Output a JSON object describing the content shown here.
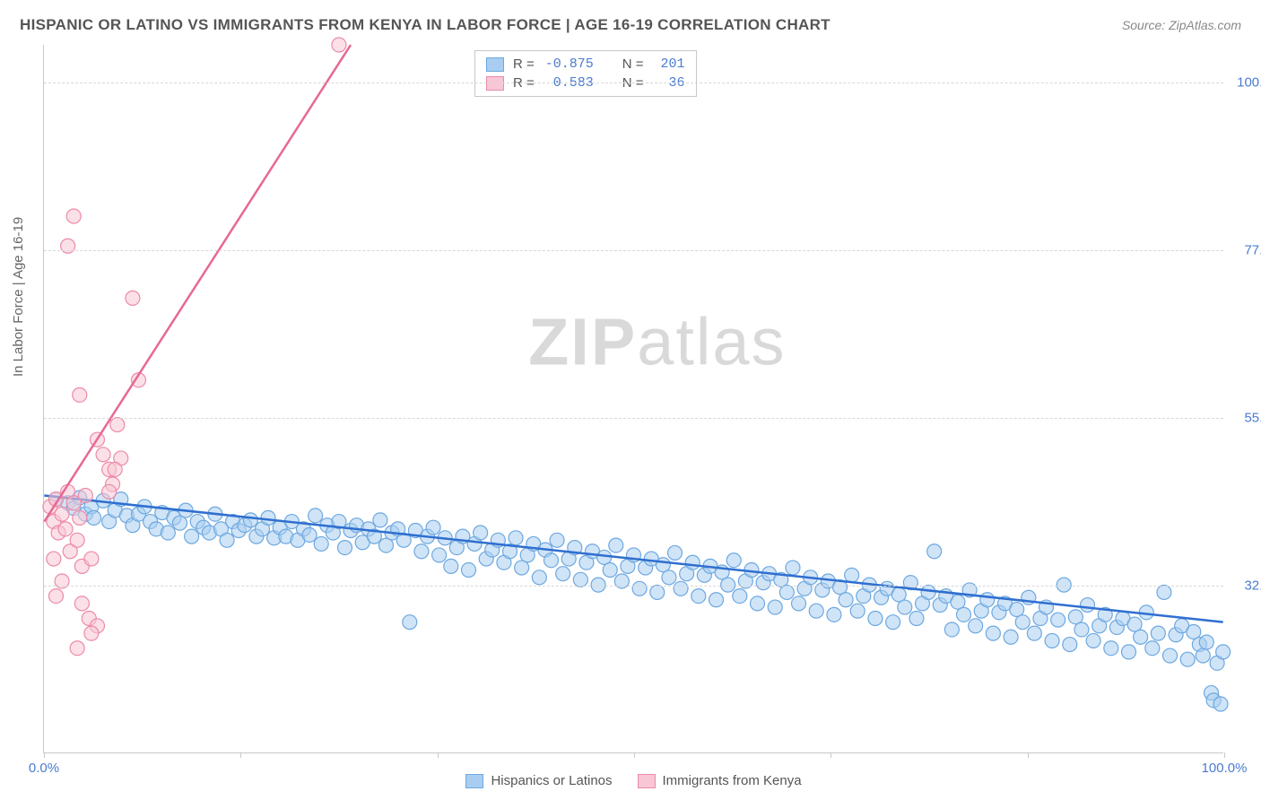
{
  "title": "HISPANIC OR LATINO VS IMMIGRANTS FROM KENYA IN LABOR FORCE | AGE 16-19 CORRELATION CHART",
  "source": "Source: ZipAtlas.com",
  "ylabel": "In Labor Force | Age 16-19",
  "watermark": {
    "bold": "ZIP",
    "light": "atlas"
  },
  "chart": {
    "type": "scatter",
    "bg_color": "#ffffff",
    "grid_color": "#d8d8d8",
    "axis_color": "#c8c8c8",
    "tick_color": "#4a7bd0",
    "marker_radius": 8,
    "marker_opacity": 0.55,
    "line_width": 2.5,
    "xlim": [
      0,
      100
    ],
    "ylim": [
      10,
      105
    ],
    "x_ticks": [
      0,
      16.67,
      33.33,
      50,
      66.67,
      83.33,
      100
    ],
    "x_tick_labels": [
      "0.0%",
      "",
      "",
      "",
      "",
      "",
      "100.0%"
    ],
    "y_grid": [
      32.5,
      55.0,
      77.5,
      100.0
    ],
    "y_tick_labels": [
      "32.5%",
      "55.0%",
      "77.5%",
      "100.0%"
    ],
    "series": [
      {
        "name": "Hispanics or Latinos",
        "color_fill": "#a9cdf0",
        "color_stroke": "#6da8e0",
        "line_color": "#2f6fd0",
        "R": "-0.875",
        "N": "201",
        "trend": {
          "x1": 0,
          "y1": 44.5,
          "x2": 100,
          "y2": 27.5
        },
        "points": [
          [
            1,
            44
          ],
          [
            2,
            43.5
          ],
          [
            2.5,
            42.8
          ],
          [
            3,
            44.2
          ],
          [
            3.5,
            42
          ],
          [
            4,
            43
          ],
          [
            4.2,
            41.5
          ],
          [
            5,
            43.8
          ],
          [
            5.5,
            41
          ],
          [
            6,
            42.5
          ],
          [
            6.5,
            44
          ],
          [
            7,
            41.8
          ],
          [
            7.5,
            40.5
          ],
          [
            8,
            42
          ],
          [
            8.5,
            43
          ],
          [
            9,
            41
          ],
          [
            9.5,
            40
          ],
          [
            10,
            42.2
          ],
          [
            10.5,
            39.5
          ],
          [
            11,
            41.5
          ],
          [
            11.5,
            40.8
          ],
          [
            12,
            42.5
          ],
          [
            12.5,
            39
          ],
          [
            13,
            41
          ],
          [
            13.5,
            40.2
          ],
          [
            14,
            39.5
          ],
          [
            14.5,
            42
          ],
          [
            15,
            40
          ],
          [
            15.5,
            38.5
          ],
          [
            16,
            41
          ],
          [
            16.5,
            39.8
          ],
          [
            17,
            40.5
          ],
          [
            17.5,
            41.2
          ],
          [
            18,
            39
          ],
          [
            18.5,
            40
          ],
          [
            19,
            41.5
          ],
          [
            19.5,
            38.8
          ],
          [
            20,
            40.2
          ],
          [
            20.5,
            39
          ],
          [
            21,
            41
          ],
          [
            21.5,
            38.5
          ],
          [
            22,
            40
          ],
          [
            22.5,
            39.2
          ],
          [
            23,
            41.8
          ],
          [
            23.5,
            38
          ],
          [
            24,
            40.5
          ],
          [
            24.5,
            39.5
          ],
          [
            25,
            41
          ],
          [
            25.5,
            37.5
          ],
          [
            26,
            39.8
          ],
          [
            26.5,
            40.5
          ],
          [
            27,
            38.2
          ],
          [
            27.5,
            40
          ],
          [
            28,
            39
          ],
          [
            28.5,
            41.2
          ],
          [
            29,
            37.8
          ],
          [
            29.5,
            39.5
          ],
          [
            30,
            40
          ],
          [
            30.5,
            38.5
          ],
          [
            31,
            27.5
          ],
          [
            31.5,
            39.8
          ],
          [
            32,
            37
          ],
          [
            32.5,
            39
          ],
          [
            33,
            40.2
          ],
          [
            33.5,
            36.5
          ],
          [
            34,
            38.8
          ],
          [
            34.5,
            35
          ],
          [
            35,
            37.5
          ],
          [
            35.5,
            39
          ],
          [
            36,
            34.5
          ],
          [
            36.5,
            38
          ],
          [
            37,
            39.5
          ],
          [
            37.5,
            36
          ],
          [
            38,
            37.2
          ],
          [
            38.5,
            38.5
          ],
          [
            39,
            35.5
          ],
          [
            39.5,
            37
          ],
          [
            40,
            38.8
          ],
          [
            40.5,
            34.8
          ],
          [
            41,
            36.5
          ],
          [
            41.5,
            38
          ],
          [
            42,
            33.5
          ],
          [
            42.5,
            37.2
          ],
          [
            43,
            35.8
          ],
          [
            43.5,
            38.5
          ],
          [
            44,
            34
          ],
          [
            44.5,
            36
          ],
          [
            45,
            37.5
          ],
          [
            45.5,
            33.2
          ],
          [
            46,
            35.5
          ],
          [
            46.5,
            37
          ],
          [
            47,
            32.5
          ],
          [
            47.5,
            36.2
          ],
          [
            48,
            34.5
          ],
          [
            48.5,
            37.8
          ],
          [
            49,
            33
          ],
          [
            49.5,
            35
          ],
          [
            50,
            36.5
          ],
          [
            50.5,
            32
          ],
          [
            51,
            34.8
          ],
          [
            51.5,
            36
          ],
          [
            52,
            31.5
          ],
          [
            52.5,
            35.2
          ],
          [
            53,
            33.5
          ],
          [
            53.5,
            36.8
          ],
          [
            54,
            32
          ],
          [
            54.5,
            34
          ],
          [
            55,
            35.5
          ],
          [
            55.5,
            31
          ],
          [
            56,
            33.8
          ],
          [
            56.5,
            35
          ],
          [
            57,
            30.5
          ],
          [
            57.5,
            34.2
          ],
          [
            58,
            32.5
          ],
          [
            58.5,
            35.8
          ],
          [
            59,
            31
          ],
          [
            59.5,
            33
          ],
          [
            60,
            34.5
          ],
          [
            60.5,
            30
          ],
          [
            61,
            32.8
          ],
          [
            61.5,
            34
          ],
          [
            62,
            29.5
          ],
          [
            62.5,
            33.2
          ],
          [
            63,
            31.5
          ],
          [
            63.5,
            34.8
          ],
          [
            64,
            30
          ],
          [
            64.5,
            32
          ],
          [
            65,
            33.5
          ],
          [
            65.5,
            29
          ],
          [
            66,
            31.8
          ],
          [
            66.5,
            33
          ],
          [
            67,
            28.5
          ],
          [
            67.5,
            32.2
          ],
          [
            68,
            30.5
          ],
          [
            68.5,
            33.8
          ],
          [
            69,
            29
          ],
          [
            69.5,
            31
          ],
          [
            70,
            32.5
          ],
          [
            70.5,
            28
          ],
          [
            71,
            30.8
          ],
          [
            71.5,
            32
          ],
          [
            72,
            27.5
          ],
          [
            72.5,
            31.2
          ],
          [
            73,
            29.5
          ],
          [
            73.5,
            32.8
          ],
          [
            74,
            28
          ],
          [
            74.5,
            30
          ],
          [
            75,
            31.5
          ],
          [
            75.5,
            37
          ],
          [
            76,
            29.8
          ],
          [
            76.5,
            31
          ],
          [
            77,
            26.5
          ],
          [
            77.5,
            30.2
          ],
          [
            78,
            28.5
          ],
          [
            78.5,
            31.8
          ],
          [
            79,
            27
          ],
          [
            79.5,
            29
          ],
          [
            80,
            30.5
          ],
          [
            80.5,
            26
          ],
          [
            81,
            28.8
          ],
          [
            81.5,
            30
          ],
          [
            82,
            25.5
          ],
          [
            82.5,
            29.2
          ],
          [
            83,
            27.5
          ],
          [
            83.5,
            30.8
          ],
          [
            84,
            26
          ],
          [
            84.5,
            28
          ],
          [
            85,
            29.5
          ],
          [
            85.5,
            25
          ],
          [
            86,
            27.8
          ],
          [
            86.5,
            32.5
          ],
          [
            87,
            24.5
          ],
          [
            87.5,
            28.2
          ],
          [
            88,
            26.5
          ],
          [
            88.5,
            29.8
          ],
          [
            89,
            25
          ],
          [
            89.5,
            27
          ],
          [
            90,
            28.5
          ],
          [
            90.5,
            24
          ],
          [
            91,
            26.8
          ],
          [
            91.5,
            28
          ],
          [
            92,
            23.5
          ],
          [
            92.5,
            27.2
          ],
          [
            93,
            25.5
          ],
          [
            93.5,
            28.8
          ],
          [
            94,
            24
          ],
          [
            94.5,
            26
          ],
          [
            95,
            31.5
          ],
          [
            95.5,
            23
          ],
          [
            96,
            25.8
          ],
          [
            96.5,
            27
          ],
          [
            97,
            22.5
          ],
          [
            97.5,
            26.2
          ],
          [
            98,
            24.5
          ],
          [
            98.3,
            23
          ],
          [
            98.6,
            24.8
          ],
          [
            99,
            18
          ],
          [
            99.2,
            17
          ],
          [
            99.5,
            22
          ],
          [
            99.8,
            16.5
          ],
          [
            100,
            23.5
          ]
        ]
      },
      {
        "name": "Immigrants from Kenya",
        "color_fill": "#f8c6d4",
        "color_stroke": "#ec8aa8",
        "line_color": "#e76894",
        "R": "0.583",
        "N": "36",
        "trend": {
          "x1": 0,
          "y1": 41,
          "x2": 26,
          "y2": 105
        },
        "points": [
          [
            0.5,
            43
          ],
          [
            0.8,
            41
          ],
          [
            1,
            44
          ],
          [
            1.2,
            39.5
          ],
          [
            1.5,
            42
          ],
          [
            1.8,
            40
          ],
          [
            2,
            45
          ],
          [
            2.2,
            37
          ],
          [
            2.5,
            43.5
          ],
          [
            2.8,
            38.5
          ],
          [
            3,
            41.5
          ],
          [
            3.2,
            35
          ],
          [
            3.5,
            44.5
          ],
          [
            4,
            36
          ],
          [
            4.5,
            52
          ],
          [
            5,
            50
          ],
          [
            5.5,
            48
          ],
          [
            5.8,
            46
          ],
          [
            6.2,
            54
          ],
          [
            6.5,
            49.5
          ],
          [
            7.5,
            71
          ],
          [
            8,
            60
          ],
          [
            2,
            78
          ],
          [
            2.5,
            82
          ],
          [
            3,
            58
          ],
          [
            6,
            48
          ],
          [
            3.8,
            28
          ],
          [
            4.5,
            27
          ],
          [
            2.8,
            24
          ],
          [
            1.5,
            33
          ],
          [
            1,
            31
          ],
          [
            0.8,
            36
          ],
          [
            3.2,
            30
          ],
          [
            4,
            26
          ],
          [
            25,
            105
          ],
          [
            5.5,
            45
          ]
        ]
      }
    ]
  },
  "legend_bottom": [
    {
      "label": "Hispanics or Latinos",
      "fill": "#a9cdf0",
      "stroke": "#6da8e0"
    },
    {
      "label": "Immigrants from Kenya",
      "fill": "#f8c6d4",
      "stroke": "#ec8aa8"
    }
  ],
  "legend_top": [
    {
      "fill": "#a9cdf0",
      "stroke": "#6da8e0",
      "R": "-0.875",
      "N": "201"
    },
    {
      "fill": "#f8c6d4",
      "stroke": "#ec8aa8",
      "R": " 0.583",
      "N": " 36"
    }
  ]
}
